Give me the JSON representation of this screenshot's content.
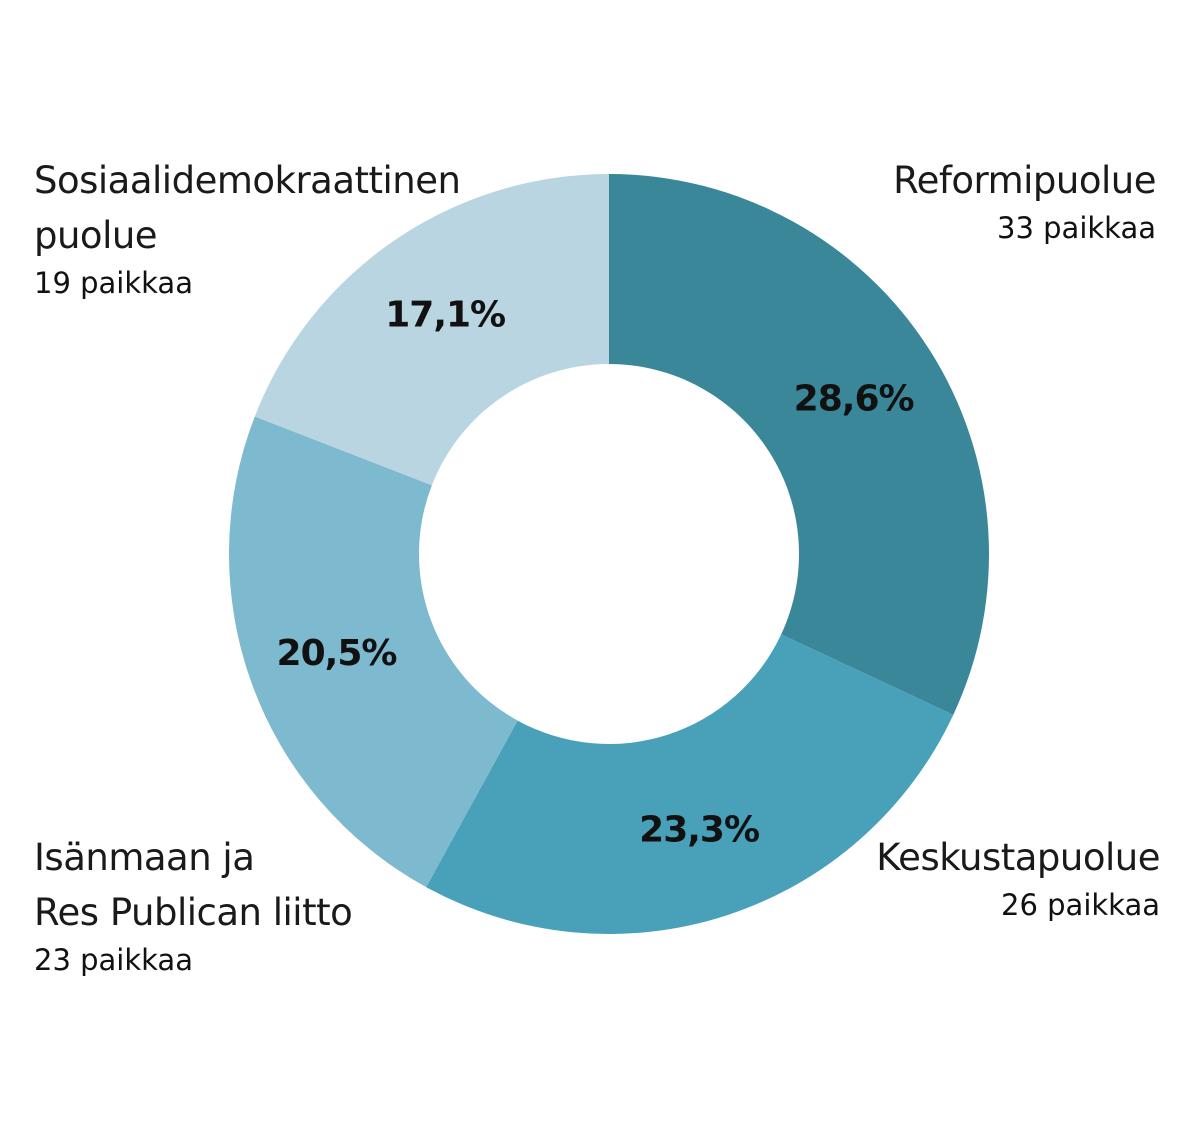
{
  "chart_data": {
    "type": "pie",
    "donut": true,
    "start_angle_deg": 0,
    "direction": "clockwise",
    "slices": [
      {
        "label": "Reformipuolue",
        "seats_label": "33 paikkaa",
        "seats": 33,
        "value": 28.6,
        "value_label": "28,6%",
        "color": "#3a8799"
      },
      {
        "label": "Keskustapuolue",
        "seats_label": "26 paikkaa",
        "seats": 26,
        "value": 23.3,
        "value_label": "23,3%",
        "color": "#48a1b9"
      },
      {
        "label": "Isänmaan ja Res Publican liitto",
        "label_lines": [
          "Isänmaan ja",
          "Res Publican liitto"
        ],
        "seats_label": "23 paikkaa",
        "seats": 23,
        "value": 20.5,
        "value_label": "20,5%",
        "color": "#7db9cf"
      },
      {
        "label": "Sosiaalidemokraattinen puolue",
        "label_lines": [
          "Sosiaalidemokraattinen",
          "puolue"
        ],
        "seats_label": "19 paikkaa",
        "seats": 19,
        "value": 17.1,
        "value_label": "17,1%",
        "color": "#b8d5e1"
      }
    ],
    "legend": "labels outside slices"
  }
}
